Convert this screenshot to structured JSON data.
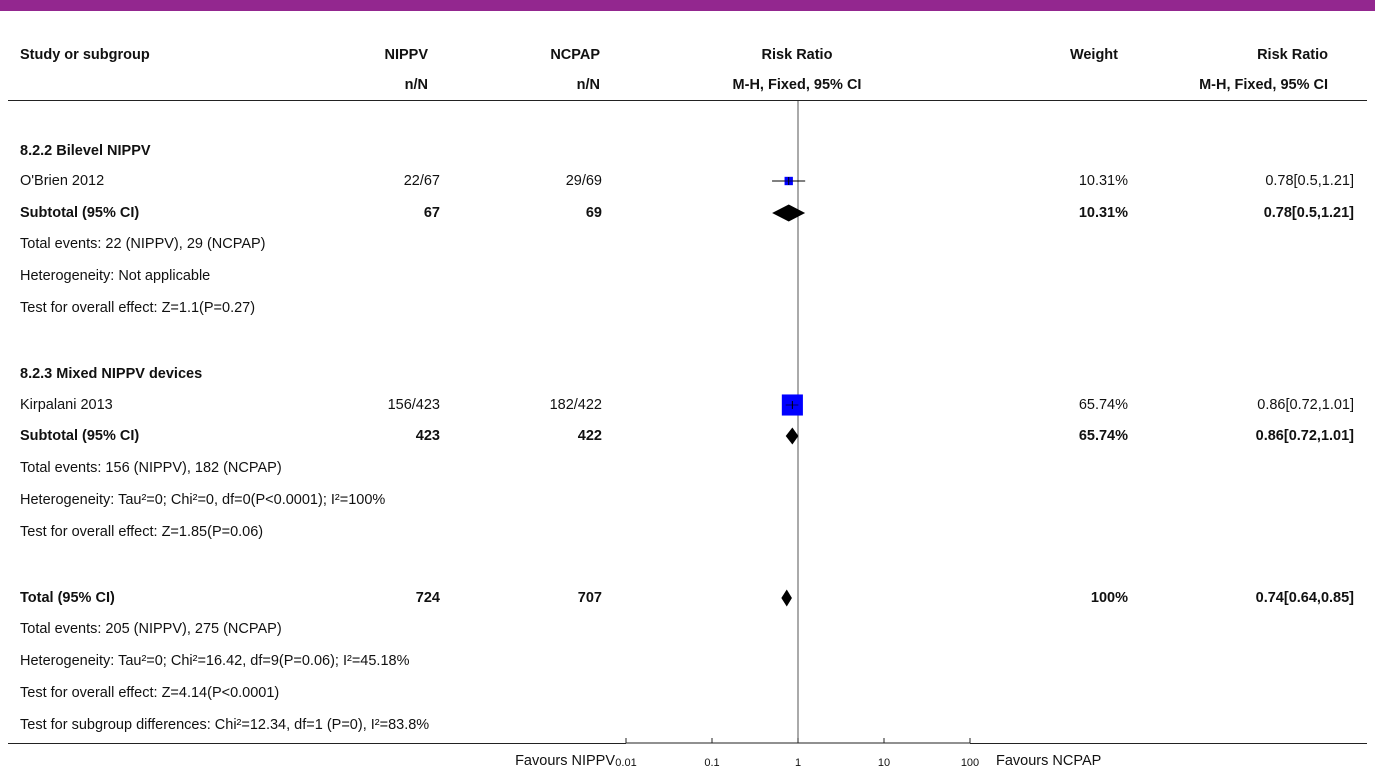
{
  "header": {
    "col_study": "Study or subgroup",
    "col_exp": "NIPPV",
    "col_exp_sub": "n/N",
    "col_ctrl": "NCPAP",
    "col_ctrl_sub": "n/N",
    "col_plot": "Risk Ratio",
    "col_plot_sub": "M-H, Fixed, 95% CI",
    "col_weight": "Weight",
    "col_rr": "Risk Ratio",
    "col_rr_sub": "M-H, Fixed, 95% CI"
  },
  "subgroups": [
    {
      "title": "8.2.2 Bilevel NIPPV",
      "study": {
        "name": "O'Brien 2012",
        "exp": "22/67",
        "ctrl": "29/69",
        "weight": "10.31%",
        "ci_text": "0.78[0.5,1.21]"
      },
      "subtotal": {
        "label": "Subtotal (95% CI)",
        "exp": "67",
        "ctrl": "69",
        "weight": "10.31%",
        "ci_text": "0.78[0.5,1.21]"
      },
      "events": "Total events: 22 (NIPPV), 29 (NCPAP)",
      "heterogeneity": "Heterogeneity: Not applicable",
      "overall": "Test for overall effect: Z=1.1(P=0.27)"
    },
    {
      "title": "8.2.3 Mixed NIPPV devices",
      "study": {
        "name": "Kirpalani 2013",
        "exp": "156/423",
        "ctrl": "182/422",
        "weight": "65.74%",
        "ci_text": "0.86[0.72,1.01]"
      },
      "subtotal": {
        "label": "Subtotal (95% CI)",
        "exp": "423",
        "ctrl": "422",
        "weight": "65.74%",
        "ci_text": "0.86[0.72,1.01]"
      },
      "events": "Total events: 156 (NIPPV), 182 (NCPAP)",
      "heterogeneity": "Heterogeneity: Tau²=0; Chi²=0, df=0(P<0.0001); I²=100%",
      "overall": "Test for overall effect: Z=1.85(P=0.06)"
    }
  ],
  "total": {
    "label": "Total (95% CI)",
    "exp": "724",
    "ctrl": "707",
    "weight": "100%",
    "ci_text": "0.74[0.64,0.85]",
    "events": "Total events: 205 (NIPPV), 275 (NCPAP)",
    "heterogeneity": "Heterogeneity: Tau²=0; Chi²=16.42, df=9(P=0.06); I²=45.18%",
    "overall": "Test for overall effect: Z=4.14(P<0.0001)",
    "subgroup_diff": "Test for subgroup differences: Chi²=12.34, df=1 (P=0), I²=83.8%"
  },
  "axis": {
    "favours_left": "Favours NIPPV",
    "favours_right": "Favours NCPAP",
    "ticks": [
      "0.01",
      "0.1",
      "1",
      "10",
      "100"
    ]
  },
  "colors": {
    "accent": "#93278f",
    "study_box": "#0000ff",
    "ink": "#000000"
  },
  "chart_data": {
    "type": "forest",
    "scale": "log",
    "xlim": [
      0.01,
      100
    ],
    "null_line": 1,
    "rows": [
      {
        "kind": "study",
        "name": "O'Brien 2012",
        "rr": 0.78,
        "lo": 0.5,
        "hi": 1.21,
        "weight": 10.31
      },
      {
        "kind": "subtotal",
        "name": "Subtotal (95% CI)",
        "rr": 0.78,
        "lo": 0.5,
        "hi": 1.21
      },
      {
        "kind": "study",
        "name": "Kirpalani 2013",
        "rr": 0.86,
        "lo": 0.72,
        "hi": 1.01,
        "weight": 65.74
      },
      {
        "kind": "subtotal",
        "name": "Subtotal (95% CI)",
        "rr": 0.86,
        "lo": 0.72,
        "hi": 1.01
      },
      {
        "kind": "total",
        "name": "Total (95% CI)",
        "rr": 0.74,
        "lo": 0.64,
        "hi": 0.85
      }
    ]
  }
}
